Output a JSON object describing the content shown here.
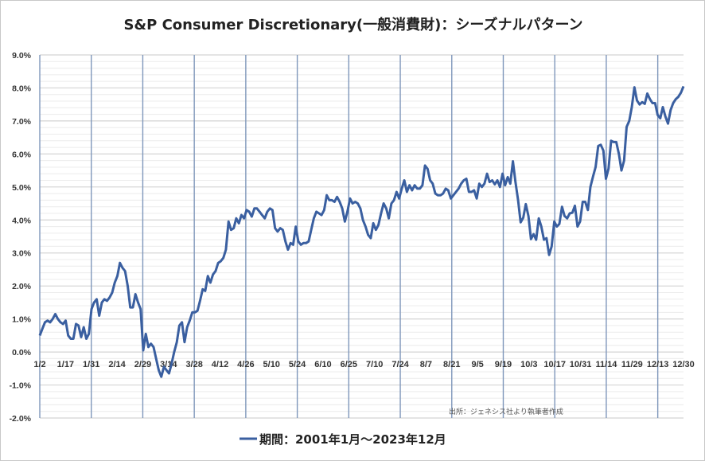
{
  "chart_data": {
    "type": "line",
    "title": "S&P Consumer Discretionary(一般消費財)：シーズナルパターン",
    "xlabel": "",
    "ylabel": "",
    "ylim": [
      -2.0,
      9.0
    ],
    "yticks": [
      "9.0%",
      "8.0%",
      "7.0%",
      "6.0%",
      "5.0%",
      "4.0%",
      "3.0%",
      "2.0%",
      "1.0%",
      "0.0%",
      "-1.0%",
      "-2.0%"
    ],
    "ytick_values": [
      9,
      8,
      7,
      6,
      5,
      4,
      3,
      2,
      1,
      0,
      -1,
      -2
    ],
    "xticks": [
      "1/2",
      "1/17",
      "1/31",
      "2/14",
      "2/29",
      "3/14",
      "3/28",
      "4/12",
      "4/26",
      "5/10",
      "5/24",
      "6/10",
      "6/25",
      "7/10",
      "7/24",
      "8/7",
      "8/21",
      "9/5",
      "9/19",
      "10/3",
      "10/17",
      "10/31",
      "11/14",
      "11/29",
      "12/13",
      "12/30"
    ],
    "grid": true,
    "legend_position": "bottom",
    "annotation": "出所：ジェネシス社より執筆者作成",
    "series": [
      {
        "name": "期間：2001年1月～2023年12月",
        "color": "#3a5fa0",
        "values": [
          0.5,
          0.7,
          0.9,
          0.95,
          0.9,
          1.0,
          1.15,
          1.0,
          0.9,
          0.85,
          0.95,
          0.5,
          0.4,
          0.4,
          0.85,
          0.8,
          0.45,
          0.75,
          0.4,
          0.55,
          1.3,
          1.5,
          1.6,
          1.1,
          1.5,
          1.6,
          1.55,
          1.65,
          1.8,
          2.1,
          2.3,
          2.7,
          2.55,
          2.45,
          2.0,
          1.35,
          1.35,
          1.75,
          1.5,
          1.3,
          0.05,
          0.55,
          0.15,
          0.25,
          0.15,
          -0.2,
          -0.55,
          -0.75,
          -0.45,
          -0.55,
          -0.65,
          -0.35,
          0.0,
          0.3,
          0.8,
          0.9,
          0.3,
          0.75,
          0.95,
          1.2,
          1.2,
          1.25,
          1.55,
          1.9,
          1.85,
          2.3,
          2.1,
          2.35,
          2.45,
          2.7,
          2.75,
          2.85,
          3.1,
          3.95,
          3.7,
          3.75,
          4.05,
          3.9,
          4.15,
          4.05,
          4.3,
          4.25,
          4.1,
          4.35,
          4.35,
          4.25,
          4.15,
          4.05,
          4.25,
          4.35,
          4.3,
          3.75,
          3.65,
          3.75,
          3.7,
          3.35,
          3.1,
          3.3,
          3.25,
          3.8,
          3.35,
          3.25,
          3.3,
          3.3,
          3.35,
          3.7,
          4.05,
          4.25,
          4.2,
          4.15,
          4.3,
          4.75,
          4.6,
          4.6,
          4.55,
          4.7,
          4.55,
          4.35,
          3.95,
          4.25,
          4.65,
          4.5,
          4.55,
          4.5,
          4.35,
          4.0,
          3.8,
          3.55,
          3.45,
          3.9,
          3.7,
          3.85,
          4.2,
          4.5,
          4.35,
          4.05,
          4.5,
          4.6,
          4.85,
          4.65,
          4.95,
          5.2,
          4.85,
          5.05,
          4.9,
          5.05,
          4.95,
          4.95,
          5.05,
          5.65,
          5.55,
          5.2,
          5.1,
          4.8,
          4.75,
          4.75,
          4.8,
          4.95,
          4.9,
          4.65,
          4.75,
          4.85,
          4.95,
          5.1,
          5.2,
          5.25,
          4.85,
          4.85,
          4.9,
          4.65,
          5.1,
          5.0,
          5.1,
          5.4,
          5.15,
          5.2,
          5.08,
          5.2,
          5.0,
          5.4,
          5.05,
          5.3,
          5.1,
          5.78,
          5.15,
          4.6,
          3.93,
          4.07,
          4.48,
          4.12,
          3.42,
          3.57,
          3.4,
          4.05,
          3.8,
          3.4,
          3.45,
          2.94,
          3.2,
          3.95,
          3.8,
          3.88,
          4.4,
          4.12,
          4.05,
          4.2,
          4.22,
          4.43,
          3.8,
          3.95,
          4.55,
          4.55,
          4.3,
          5.0,
          5.32,
          5.6,
          6.24,
          6.28,
          6.1,
          5.25,
          5.56,
          6.4,
          6.36,
          6.36,
          6.0,
          5.5,
          5.8,
          6.82,
          7.0,
          7.42,
          8.02,
          7.62,
          7.5,
          7.57,
          7.52,
          7.83,
          7.66,
          7.54,
          7.54,
          7.18,
          7.08,
          7.42,
          7.13,
          6.92,
          7.33,
          7.54,
          7.66,
          7.73,
          7.86,
          8.05
        ]
      }
    ]
  }
}
